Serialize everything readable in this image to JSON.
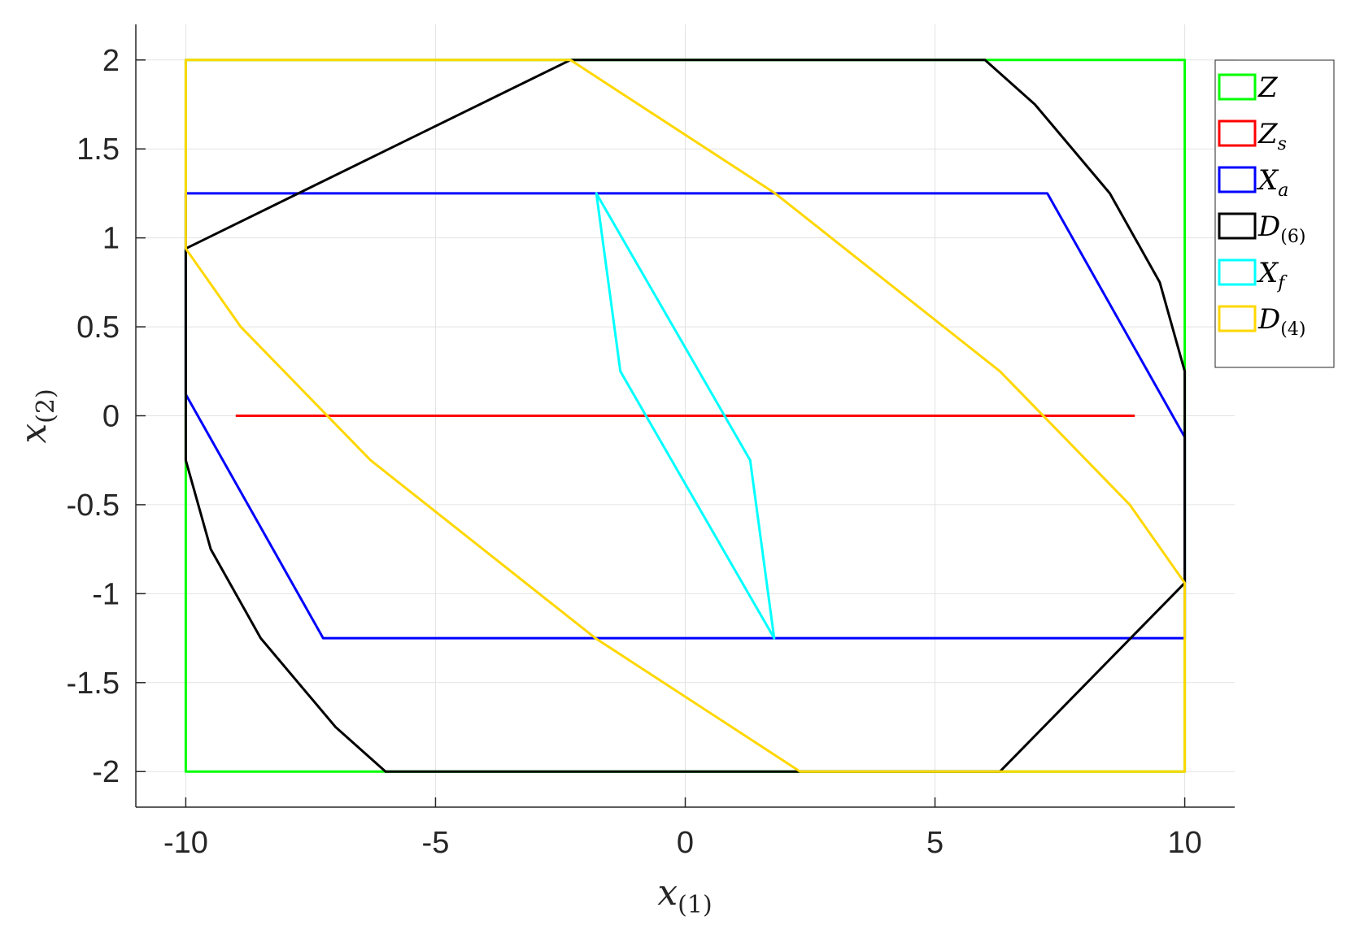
{
  "chart_data": {
    "type": "line",
    "xlabel": {
      "main": "x",
      "sub": "(1)"
    },
    "ylabel": {
      "main": "x",
      "sub": "(2)"
    },
    "xlim": [
      -11,
      11
    ],
    "ylim": [
      -2.2,
      2.2
    ],
    "xticks": [
      -10,
      -5,
      0,
      5,
      10
    ],
    "yticks": [
      -2,
      -1.5,
      -1,
      -0.5,
      0,
      0.5,
      1,
      1.5,
      2
    ],
    "xtick_labels": [
      "-10",
      "-5",
      "0",
      "5",
      "10"
    ],
    "ytick_labels": [
      "-2",
      "-1.5",
      "-1",
      "-0.5",
      "0",
      "0.5",
      "1",
      "1.5",
      "2"
    ],
    "grid": true,
    "legend_position": "top-right",
    "series": [
      {
        "name": "Z",
        "legend": {
          "main": "Z",
          "sub": "",
          "sub_upright": false
        },
        "color": "#00ff00",
        "closed": true,
        "points": [
          [
            -10,
            -2
          ],
          [
            10,
            -2
          ],
          [
            10,
            2
          ],
          [
            -10,
            2
          ]
        ]
      },
      {
        "name": "Z_s",
        "legend": {
          "main": "Z",
          "sub": "s",
          "sub_upright": false
        },
        "color": "#ff0000",
        "closed": false,
        "points": [
          [
            -9,
            0
          ],
          [
            9,
            0
          ]
        ]
      },
      {
        "name": "X_a",
        "legend": {
          "main": "X",
          "sub": "a",
          "sub_upright": false
        },
        "color": "#0000ff",
        "closed": true,
        "points": [
          [
            -10,
            1.25
          ],
          [
            7.25,
            1.25
          ],
          [
            10,
            -0.12
          ],
          [
            10,
            -1.25
          ],
          [
            -7.25,
            -1.25
          ],
          [
            -10,
            0.12
          ]
        ]
      },
      {
        "name": "D_(6)",
        "legend": {
          "main": "D",
          "sub": "(6)",
          "sub_upright": true
        },
        "color": "#000000",
        "closed": true,
        "points": [
          [
            -2.3,
            2
          ],
          [
            6,
            2
          ],
          [
            7,
            1.75
          ],
          [
            8.5,
            1.25
          ],
          [
            9.5,
            0.75
          ],
          [
            10,
            0.25
          ],
          [
            10,
            -0.94
          ],
          [
            6.3,
            -2
          ],
          [
            -6,
            -2
          ],
          [
            -7,
            -1.75
          ],
          [
            -8.5,
            -1.25
          ],
          [
            -9.5,
            -0.75
          ],
          [
            -10,
            -0.25
          ],
          [
            -10,
            0.94
          ]
        ]
      },
      {
        "name": "X_f",
        "legend": {
          "main": "X",
          "sub": "f",
          "sub_upright": false
        },
        "color": "#00ffff",
        "closed": true,
        "points": [
          [
            -1.78,
            1.25
          ],
          [
            1.3,
            -0.25
          ],
          [
            1.78,
            -1.25
          ],
          [
            -1.3,
            0.25
          ]
        ]
      },
      {
        "name": "D_(4)",
        "legend": {
          "main": "D",
          "sub": "(4)",
          "sub_upright": true
        },
        "color": "#ffd700",
        "closed": true,
        "points": [
          [
            -2.3,
            2
          ],
          [
            1.8,
            1.25
          ],
          [
            6.3,
            0.25
          ],
          [
            8.9,
            -0.5
          ],
          [
            10,
            -0.94
          ],
          [
            10,
            -2
          ],
          [
            2.3,
            -2
          ],
          [
            -1.8,
            -1.25
          ],
          [
            -6.3,
            -0.25
          ],
          [
            -8.9,
            0.5
          ],
          [
            -10,
            0.94
          ],
          [
            -10,
            2
          ]
        ]
      }
    ]
  }
}
